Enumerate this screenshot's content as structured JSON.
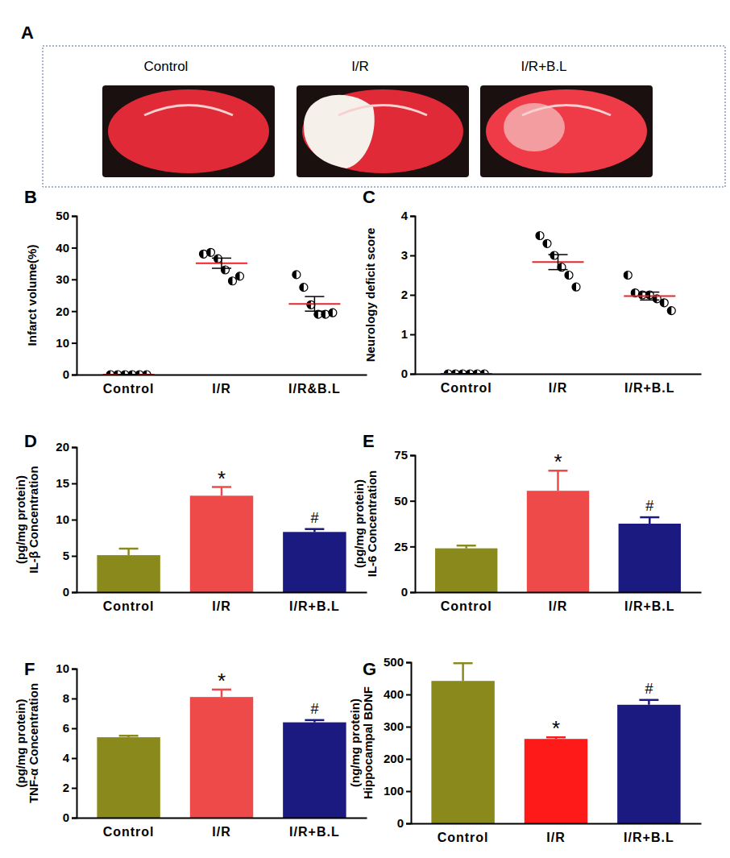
{
  "chart_data": [
    {
      "type": "image",
      "title": "A",
      "categories": [
        "Control",
        "I/R",
        "I/R+B.L"
      ]
    },
    {
      "type": "dot",
      "title": "B",
      "ylabel": "Infarct volume(%)",
      "categories": [
        "Control",
        "I/R",
        "I/R&B.L"
      ],
      "points": [
        [
          0,
          0,
          0,
          0,
          0,
          0
        ],
        [
          38,
          38.5,
          36.5,
          33,
          29.5,
          31
        ],
        [
          31.5,
          27.5,
          22,
          19,
          19,
          19.5
        ]
      ],
      "values": [
        0,
        35.1,
        22.3
      ],
      "errors": [
        0,
        1.6,
        2.3
      ],
      "color": "#e8262a",
      "marker": "half-circle",
      "ylim": [
        0,
        50
      ],
      "yticks": [
        0,
        10,
        20,
        30,
        40,
        50
      ]
    },
    {
      "type": "dot",
      "title": "C",
      "ylabel": "Neurology deficit score",
      "categories": [
        "Control",
        "I/R",
        "I/R+B.L"
      ],
      "points": [
        [
          0,
          0,
          0,
          0,
          0,
          0
        ],
        [
          3.5,
          3.3,
          3.0,
          2.7,
          2.5,
          2.2
        ],
        [
          2.5,
          2.05,
          2.0,
          2.0,
          1.9,
          1.8,
          1.6
        ]
      ],
      "values": [
        0,
        2.83,
        1.97
      ],
      "errors": [
        0,
        0.19,
        0.1
      ],
      "color": "#e8262a",
      "marker": "half-circle",
      "ylim": [
        0,
        4
      ],
      "yticks": [
        0,
        1,
        2,
        3,
        4
      ]
    },
    {
      "type": "bar",
      "title": "D",
      "ylabel": [
        "IL-β Concentration",
        "(pg/mg protein)"
      ],
      "categories": [
        "Control",
        "I/R",
        "I/R+B.L"
      ],
      "values": [
        5.1,
        13.3,
        8.3
      ],
      "errors": [
        0.9,
        1.2,
        0.4
      ],
      "colors": [
        "#8a8a1c",
        "#ef4a4a",
        "#1a1a80"
      ],
      "annotations": [
        {
          "category": "I/R",
          "text": "*"
        },
        {
          "category": "I/R+B.L",
          "text": "#"
        }
      ],
      "ylim": [
        0,
        20
      ],
      "yticks": [
        0,
        5,
        10,
        15,
        20
      ]
    },
    {
      "type": "bar",
      "title": "E",
      "ylabel": [
        "IL-6 Concentration",
        "(pg/mg protein)"
      ],
      "categories": [
        "Control",
        "I/R",
        "I/R+B.L"
      ],
      "values": [
        24,
        55.5,
        37.5
      ],
      "errors": [
        1.5,
        11,
        3.5
      ],
      "colors": [
        "#8a8a1c",
        "#ef4a4a",
        "#1a1a80"
      ],
      "annotations": [
        {
          "category": "I/R",
          "text": "*"
        },
        {
          "category": "I/R+B.L",
          "text": "#"
        }
      ],
      "ylim": [
        0,
        75
      ],
      "yticks": [
        0,
        25,
        50,
        75
      ]
    },
    {
      "type": "bar",
      "title": "F",
      "ylabel": [
        "TNF-α Concentration",
        "(pg/mg protein)"
      ],
      "categories": [
        "Control",
        "I/R",
        "I/R+B.L"
      ],
      "values": [
        5.4,
        8.1,
        6.4
      ],
      "errors": [
        0.1,
        0.5,
        0.15
      ],
      "colors": [
        "#8a8a1c",
        "#ef4a4a",
        "#1a1a80"
      ],
      "annotations": [
        {
          "category": "I/R",
          "text": "*"
        },
        {
          "category": "I/R+B.L",
          "text": "#"
        }
      ],
      "ylim": [
        0,
        10
      ],
      "yticks": [
        0,
        2,
        4,
        6,
        8,
        10
      ]
    },
    {
      "type": "bar",
      "title": "G",
      "ylabel": [
        "Hippocampal BDNF",
        "(ng/mg protein)"
      ],
      "categories": [
        "Control",
        "I/R",
        "I/R+B.L"
      ],
      "values": [
        442,
        262,
        368
      ],
      "errors": [
        55,
        5,
        15
      ],
      "colors": [
        "#8a8a1c",
        "#ff1a1a",
        "#1a1a80"
      ],
      "annotations": [
        {
          "category": "I/R",
          "text": "*"
        },
        {
          "category": "I/R+B.L",
          "text": "#"
        }
      ],
      "ylim": [
        0,
        500
      ],
      "yticks": [
        0,
        100,
        200,
        300,
        400,
        500
      ]
    }
  ]
}
